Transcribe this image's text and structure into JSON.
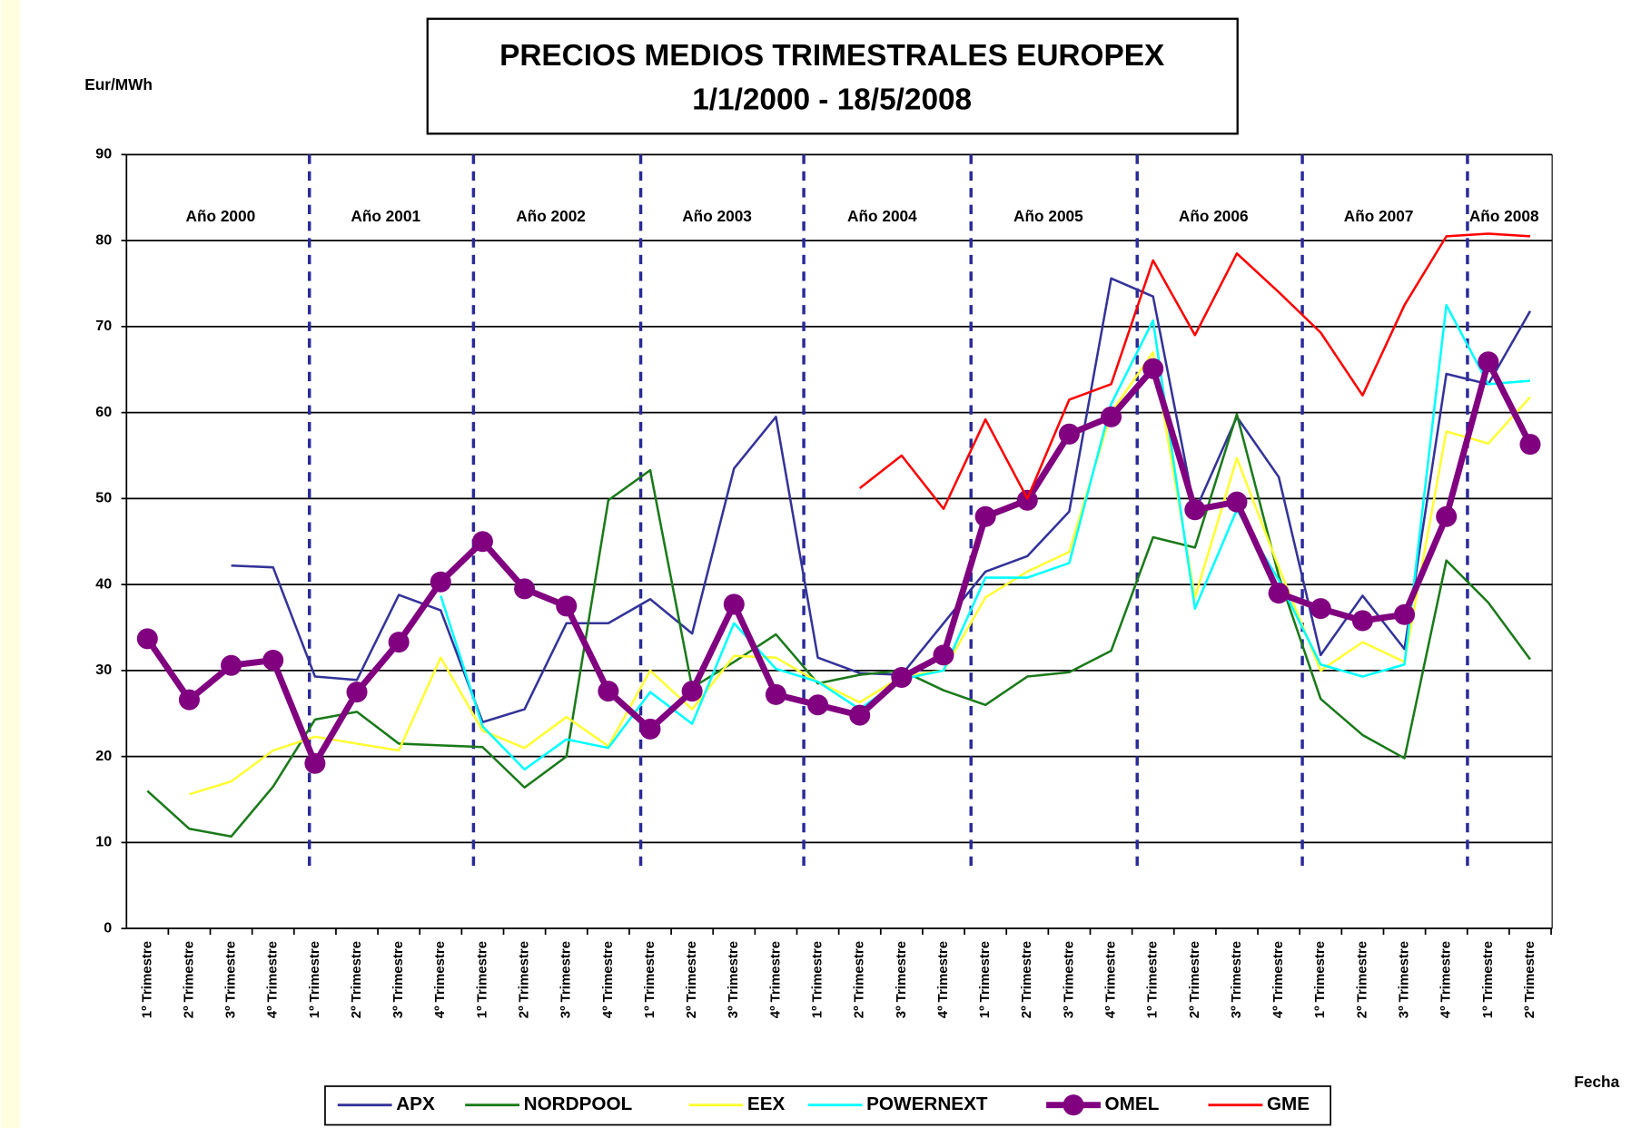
{
  "chart_data": {
    "type": "line",
    "title": "PRECIOS MEDIOS TRIMESTRALES EUROPEX",
    "subtitle": "1/1/2000 - 18/5/2008",
    "y_label": "Eur/MWh",
    "x_label": "Fecha",
    "year_labels": [
      "Año 2000",
      "Año 2001",
      "Año 2002",
      "Año 2003",
      "Año 2004",
      "Año 2005",
      "Año 2006",
      "Año 2007",
      "Año 2008"
    ],
    "categories": [
      "1º Trimestre",
      "2º Trimestre",
      "3º Trimestre",
      "4º Trimestre",
      "1º Trimestre",
      "2º Trimestre",
      "3º Trimestre",
      "4º Trimestre",
      "1º Trimestre",
      "2º Trimestre",
      "3º Trimestre",
      "4º Trimestre",
      "1º Trimestre",
      "2º Trimestre",
      "3º Trimestre",
      "4º Trimestre",
      "1º Trimestre",
      "2º Trimestre",
      "3º Trimestre",
      "4º Trimestre",
      "1º Trimestre",
      "2º Trimestre",
      "3º Trimestre",
      "4º Trimestre",
      "1º Trimestre",
      "2º Trimestre",
      "3º Trimestre",
      "4º Trimestre",
      "1º Trimestre",
      "2º Trimestre",
      "3º Trimestre",
      "4º Trimestre",
      "1º Trimestre",
      "2º Trimestre"
    ],
    "ylim": [
      0,
      90
    ],
    "yticks": [
      0,
      10,
      20,
      30,
      40,
      50,
      60,
      70,
      80,
      90
    ],
    "grid": true,
    "legend": "bottom",
    "series": [
      {
        "name": "APX",
        "color": "#333399",
        "values": [
          null,
          null,
          42.2,
          42.0,
          29.3,
          28.9,
          38.8,
          37.0,
          24.0,
          25.5,
          35.5,
          35.5,
          38.3,
          34.3,
          53.5,
          59.5,
          31.5,
          29.7,
          29.5,
          35.5,
          41.5,
          43.3,
          48.5,
          75.6,
          73.5,
          48.5,
          59.5,
          52.5,
          31.8,
          38.7,
          32.5,
          64.5,
          63.3,
          71.8
        ]
      },
      {
        "name": "NORDPOOL",
        "color": "#1a7a1a",
        "values": [
          16.0,
          11.6,
          10.7,
          16.5,
          24.3,
          25.2,
          21.5,
          21.3,
          21.1,
          16.4,
          20.0,
          49.8,
          53.3,
          28.0,
          31.0,
          34.2,
          28.5,
          29.5,
          30.0,
          27.7,
          26.0,
          29.3,
          29.8,
          32.3,
          45.5,
          44.3,
          59.8,
          41.0,
          26.7,
          22.5,
          19.8,
          42.8,
          37.9,
          31.3
        ]
      },
      {
        "name": "EEX",
        "color": "#ffff33",
        "values": [
          null,
          15.6,
          17.1,
          20.7,
          22.3,
          21.5,
          20.7,
          31.5,
          23.0,
          21.0,
          24.6,
          21.2,
          30.0,
          25.5,
          31.7,
          31.5,
          28.7,
          26.3,
          29.3,
          30.0,
          38.5,
          41.5,
          43.8,
          60.0,
          67.0,
          38.5,
          54.7,
          42.0,
          30.0,
          33.3,
          31.0,
          57.8,
          56.4,
          61.8
        ]
      },
      {
        "name": "POWERNEXT",
        "color": "#00ffff",
        "values": [
          null,
          null,
          null,
          null,
          null,
          null,
          null,
          38.7,
          23.5,
          18.5,
          22.0,
          21.0,
          27.5,
          23.8,
          35.5,
          30.2,
          28.7,
          25.5,
          29.0,
          30.0,
          40.8,
          40.8,
          42.5,
          61.0,
          70.7,
          37.2,
          48.7,
          40.5,
          30.7,
          29.3,
          30.7,
          72.5,
          63.3,
          63.7
        ]
      },
      {
        "name": "OMEL",
        "color": "#800080",
        "values": [
          33.7,
          26.6,
          30.6,
          31.2,
          19.2,
          27.5,
          33.3,
          40.3,
          45.0,
          39.5,
          37.5,
          27.6,
          23.2,
          27.6,
          37.7,
          27.2,
          26.0,
          24.8,
          29.2,
          31.8,
          47.9,
          49.8,
          57.5,
          59.5,
          65.1,
          48.7,
          49.6,
          39.0,
          37.2,
          35.8,
          36.5,
          47.9,
          65.9,
          56.3
        ]
      },
      {
        "name": "GME",
        "color": "#ff0000",
        "values": [
          null,
          null,
          null,
          null,
          null,
          null,
          null,
          null,
          null,
          null,
          null,
          null,
          null,
          null,
          null,
          null,
          null,
          51.2,
          55.0,
          48.8,
          59.2,
          50.0,
          61.5,
          63.3,
          77.7,
          69.0,
          78.5,
          74.0,
          69.3,
          62.0,
          72.5,
          80.5,
          80.8,
          80.5
        ]
      }
    ]
  }
}
